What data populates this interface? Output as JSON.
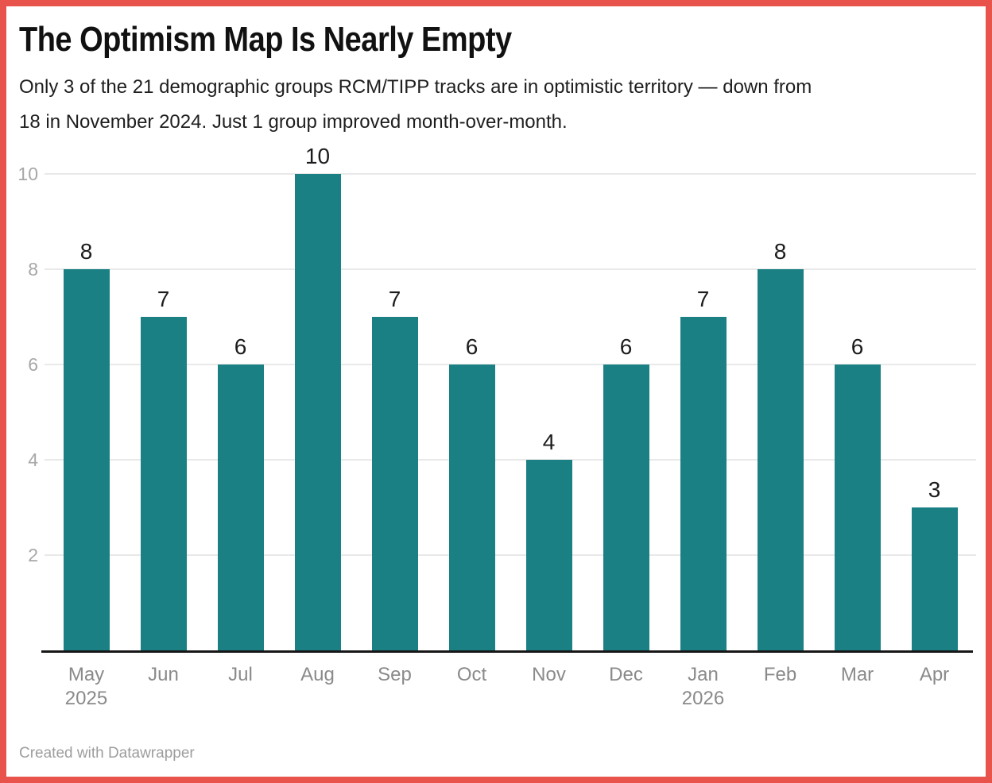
{
  "header": {
    "title": "The Optimism Map Is Nearly Empty",
    "subtitle_lines": [
      "Only 3 of the 21 demographic groups RCM/TIPP tracks are in optimistic territory — down from",
      "18 in November 2024. Just 1 group improved month-over-month."
    ]
  },
  "footer": {
    "text": "Created with Datawrapper"
  },
  "colors": {
    "border": "#e8544b",
    "bar": "#1a8083",
    "grid": "#e9e9e9",
    "axis_line": "#161616",
    "tick_label": "#a7a7a7",
    "month_label": "#8a8a8a",
    "value_label": "#1c1c1c",
    "title_text": "#111111",
    "subtitle_text": "#1e1e1e",
    "footer_text": "#9d9d9d"
  },
  "chart_data": {
    "type": "bar",
    "title": "The Optimism Map Is Nearly Empty",
    "categories": [
      "May",
      "Jun",
      "Jul",
      "Aug",
      "Sep",
      "Oct",
      "Nov",
      "Dec",
      "Jan",
      "Feb",
      "Mar",
      "Apr"
    ],
    "category_year_labels": [
      "2025",
      "",
      "",
      "",
      "",
      "",
      "",
      "",
      "2026",
      "",
      "",
      ""
    ],
    "values": [
      8,
      7,
      6,
      10,
      7,
      6,
      4,
      6,
      7,
      8,
      6,
      3
    ],
    "xlabel": "",
    "ylabel": "",
    "ylim": [
      0,
      10
    ],
    "yticks": [
      2,
      4,
      6,
      8,
      10
    ],
    "bar_color": "#1a8083",
    "grid": true,
    "legend": false,
    "value_labels_shown": true
  }
}
